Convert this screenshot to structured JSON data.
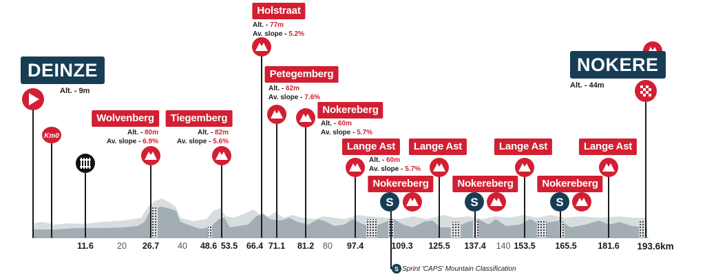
{
  "start": {
    "name": "DEINZE",
    "alt": "Alt. - 9m"
  },
  "finish": {
    "name": "NOKERE",
    "alt": "Alt. - 44m"
  },
  "km0": "Km0",
  "climbs": [
    {
      "name": "Wolvenberg",
      "alt_label": "Alt. - ",
      "alt_value": "80m",
      "slope_label": "Av. slope - ",
      "slope_value": "6.9%"
    },
    {
      "name": "Tiegemberg",
      "alt_label": "Alt. - ",
      "alt_value": "82m",
      "slope_label": "Av. slope - ",
      "slope_value": "5.6%"
    },
    {
      "name": "Holstraat",
      "alt_label": "Alt. - ",
      "alt_value": "77m",
      "slope_label": "Av. slope - ",
      "slope_value": "5.2%"
    },
    {
      "name": "Petegemberg",
      "alt_label": "Alt. - ",
      "alt_value": "62m",
      "slope_label": "Av. slope - ",
      "slope_value": "7.6%"
    },
    {
      "name": "Nokereberg",
      "alt_label": "Alt. - ",
      "alt_value": "60m",
      "slope_label": "Av. slope - ",
      "slope_value": "5.7%"
    },
    {
      "name": "Lange Ast",
      "alt_label": "Alt. - ",
      "alt_value": "60m",
      "slope_label": "Av. slope - ",
      "slope_value": "5.7%"
    },
    {
      "name": "Lange Ast"
    },
    {
      "name": "Lange Ast"
    },
    {
      "name": "Lange Ast"
    }
  ],
  "sprints": [
    {
      "name": "Nokereberg",
      "icon": "S"
    },
    {
      "name": "Nokereberg",
      "icon": "S"
    },
    {
      "name": "Nokereberg",
      "icon": "S"
    }
  ],
  "km_markers": [
    {
      "value": "11.6",
      "style": "bold"
    },
    {
      "value": "20",
      "style": "grey"
    },
    {
      "value": "26.7",
      "style": "bold"
    },
    {
      "value": "40",
      "style": "grey"
    },
    {
      "value": "48.6",
      "style": "bold"
    },
    {
      "value": "53.5",
      "style": "bold"
    },
    {
      "value": "66.4",
      "style": "bold"
    },
    {
      "value": "71.1",
      "style": "bold"
    },
    {
      "value": "81.2",
      "style": "bold"
    },
    {
      "value": "80",
      "style": "grey"
    },
    {
      "value": "97.4",
      "style": "bold"
    },
    {
      "value": "109.3",
      "style": "bold"
    },
    {
      "value": "125.5",
      "style": "bold"
    },
    {
      "value": "137.4",
      "style": "bold"
    },
    {
      "value": "140",
      "style": "grey"
    },
    {
      "value": "153.5",
      "style": "bold"
    },
    {
      "value": "165.5",
      "style": "bold"
    },
    {
      "value": "181.6",
      "style": "bold"
    },
    {
      "value": "193.6km",
      "style": "bold"
    }
  ],
  "legend": {
    "icon": "S",
    "text": "Sprint 'CAPS' Mountain Classification"
  },
  "colors": {
    "red": "#d21f32",
    "navy": "#173d55",
    "profile": "#c4cbd0",
    "profile_dark": "#9aa4ab"
  }
}
